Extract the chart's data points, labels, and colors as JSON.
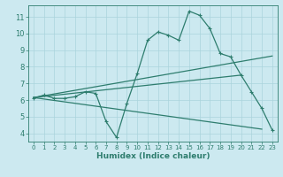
{
  "xlabel": "Humidex (Indice chaleur)",
  "bg_color": "#cce9f0",
  "line_color": "#2e7d6e",
  "grid_color": "#aad4dc",
  "xlim": [
    -0.5,
    23.5
  ],
  "ylim": [
    3.5,
    11.7
  ],
  "xticks": [
    0,
    1,
    2,
    3,
    4,
    5,
    6,
    7,
    8,
    9,
    10,
    11,
    12,
    13,
    14,
    15,
    16,
    17,
    18,
    19,
    20,
    21,
    22,
    23
  ],
  "yticks": [
    4,
    5,
    6,
    7,
    8,
    9,
    10,
    11
  ],
  "curve1_x": [
    0,
    1,
    2,
    3,
    4,
    5,
    6,
    7,
    8,
    9,
    10,
    11,
    12,
    13,
    14,
    15,
    16,
    17,
    18,
    19,
    20,
    21,
    22,
    23
  ],
  "curve1_y": [
    6.1,
    6.3,
    6.1,
    6.1,
    6.2,
    6.5,
    6.4,
    4.7,
    3.75,
    5.8,
    7.6,
    9.6,
    10.1,
    9.9,
    9.6,
    11.35,
    11.1,
    10.3,
    8.8,
    8.6,
    7.5,
    6.5,
    5.5,
    4.2
  ],
  "curve2_x": [
    0,
    23
  ],
  "curve2_y": [
    6.15,
    8.65
  ],
  "curve3_x": [
    0,
    20
  ],
  "curve3_y": [
    6.15,
    7.5
  ],
  "curve4_x": [
    0,
    22
  ],
  "curve4_y": [
    6.15,
    4.25
  ]
}
